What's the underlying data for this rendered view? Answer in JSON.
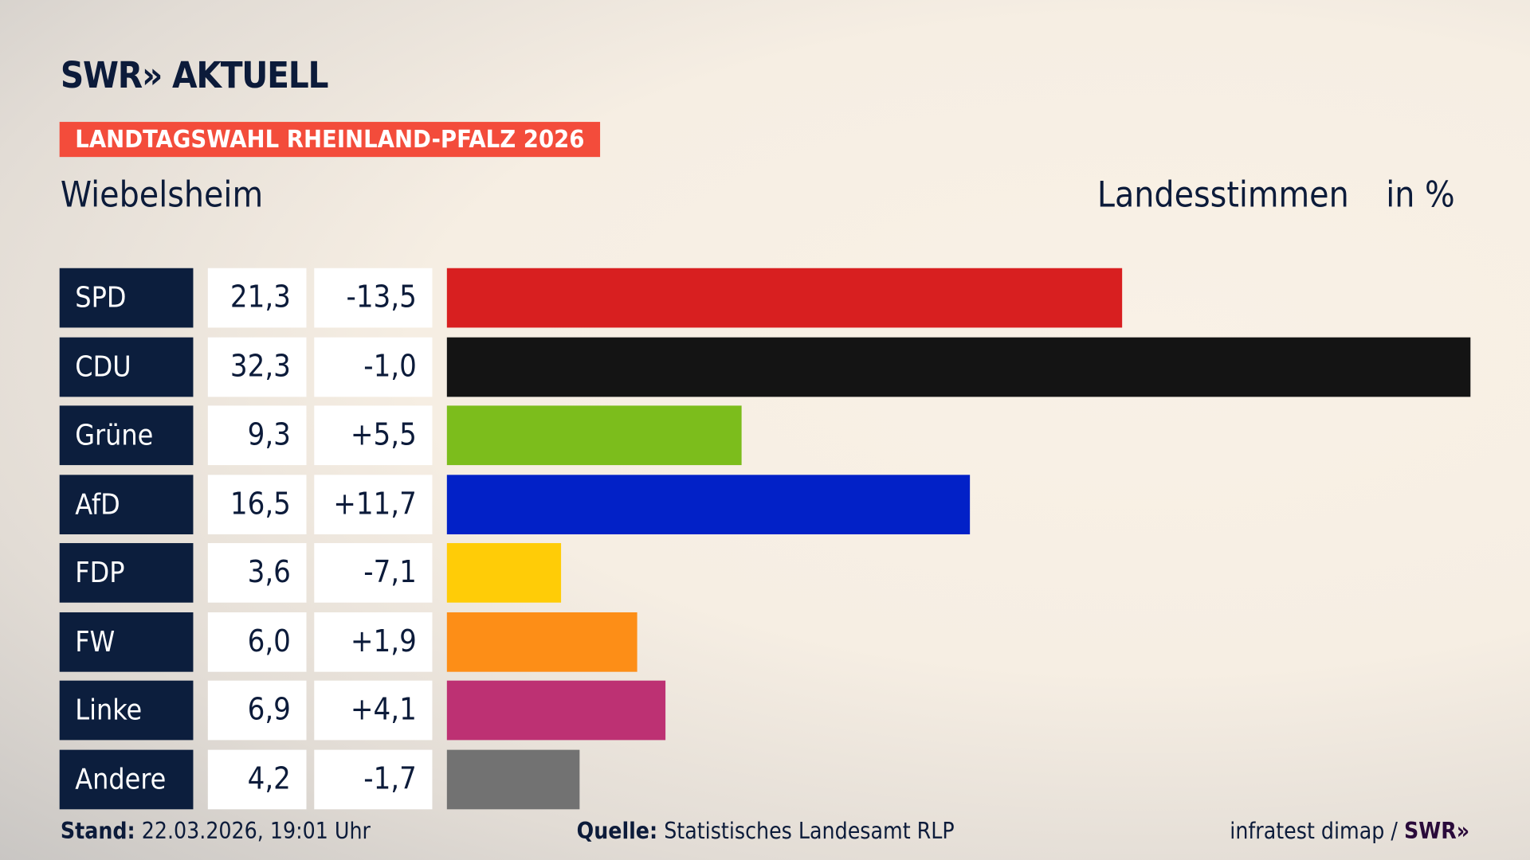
{
  "header": {
    "logo": "SWR» AKTUELL",
    "tag": "LANDTAGSWAHL RHEINLAND-PFALZ 2026",
    "place": "Wiebelsheim",
    "measure": "Landesstimmen",
    "unit": "in %"
  },
  "chart_data": {
    "type": "bar",
    "orientation": "horizontal",
    "categories": [
      "SPD",
      "CDU",
      "Grüne",
      "AfD",
      "FDP",
      "FW",
      "Linke",
      "Andere"
    ],
    "values": [
      21.3,
      32.3,
      9.3,
      16.5,
      3.6,
      6.0,
      6.9,
      4.2
    ],
    "value_labels": [
      "21,3",
      "32,3",
      "9,3",
      "16,5",
      "3,6",
      "6,0",
      "6,9",
      "4,2"
    ],
    "diff_labels": [
      "-13,5",
      "-1,0",
      "+5,5",
      "+11,7",
      "-7,1",
      "+1,9",
      "+4,1",
      "-1,7"
    ],
    "colors": [
      "#d81f20",
      "#141414",
      "#7cbd1c",
      "#0221c7",
      "#ffcc07",
      "#fd8e17",
      "#bd3173",
      "#727272"
    ],
    "ylabel": "Landesstimmen",
    "unit": "in %"
  },
  "footer": {
    "stand_label": "Stand:",
    "stand": "22.03.2026, 19:01 Uhr",
    "source_label": "Quelle:",
    "source": "Statistisches Landesamt RLP",
    "credit": "infratest dimap / ",
    "credit_logo": "SWR»"
  }
}
